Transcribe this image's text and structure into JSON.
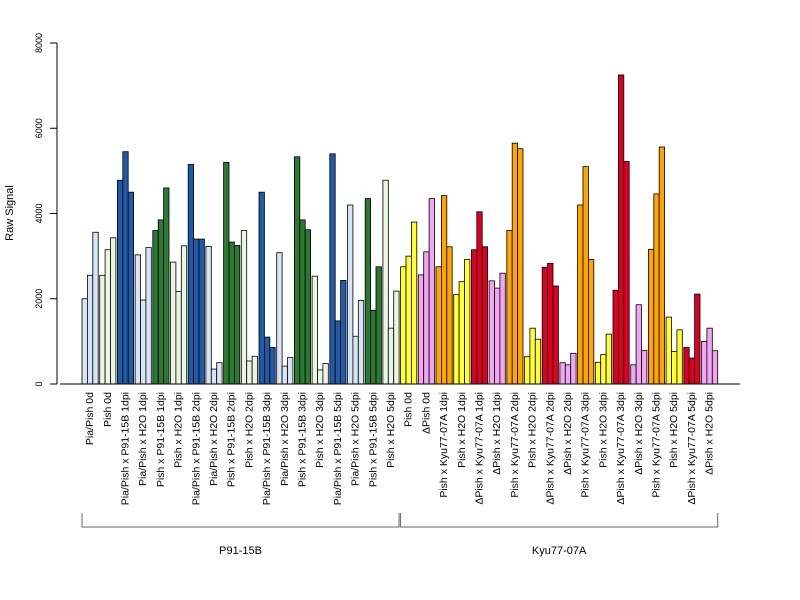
{
  "chart_data": {
    "type": "bar",
    "ylabel": "Raw Signal",
    "xlabel": "",
    "ylim": [
      0,
      8000
    ],
    "yticks": [
      0,
      2000,
      4000,
      6000,
      8000
    ],
    "grid": false,
    "legend": "none",
    "group_size": 3,
    "groups": [
      {
        "label": "Pia/Pish 0d",
        "color": "#d6e4f5",
        "values": [
          2000,
          2550,
          3560
        ]
      },
      {
        "label": "Pish 0d",
        "color": "#eaf5e2",
        "values": [
          2550,
          3150,
          3430
        ]
      },
      {
        "label": "Pia/Pish x P91-15B 1dpi",
        "color": "#1e5ba8",
        "values": [
          4780,
          5450,
          4500
        ]
      },
      {
        "label": "Pia/Pish x H2O 1dpi",
        "color": "#d6e4f5",
        "values": [
          3030,
          1970,
          3200
        ]
      },
      {
        "label": "Pish x P91-15B 1dpi",
        "color": "#2a7a34",
        "values": [
          3600,
          3850,
          4600
        ]
      },
      {
        "label": "Pish x H2O 1dpi",
        "color": "#eaf5e2",
        "values": [
          2860,
          2170,
          3240
        ]
      },
      {
        "label": "Pia/Pish x P91-15B 2dpi",
        "color": "#1e5ba8",
        "values": [
          5150,
          3400,
          3400
        ]
      },
      {
        "label": "Pia/Pish x H2O 2dpi",
        "color": "#d6e4f5",
        "values": [
          3230,
          350,
          500
        ]
      },
      {
        "label": "Pish x P91-15B 2dpi",
        "color": "#2a7a34",
        "values": [
          5200,
          3330,
          3250
        ]
      },
      {
        "label": "Pish x H2O 2dpi",
        "color": "#eaf5e2",
        "values": [
          3600,
          540,
          650
        ]
      },
      {
        "label": "Pia/Pish x P91-15B 3dpi",
        "color": "#1e5ba8",
        "values": [
          4500,
          1100,
          860
        ]
      },
      {
        "label": "Pia/Pish x H2O 3dpi",
        "color": "#d6e4f5",
        "values": [
          3080,
          420,
          620
        ]
      },
      {
        "label": "Pish x P91-15B 3dpi",
        "color": "#2a7a34",
        "values": [
          5330,
          3850,
          3620
        ]
      },
      {
        "label": "Pish x H2O 3dpi",
        "color": "#eaf5e2",
        "values": [
          2530,
          330,
          480
        ]
      },
      {
        "label": "Pia/Pish x P91-15B 5dpi",
        "color": "#1e5ba8",
        "values": [
          5400,
          1480,
          2430
        ]
      },
      {
        "label": "Pia/Pish x H2O 5dpi",
        "color": "#d6e4f5",
        "values": [
          4200,
          1120,
          1960
        ]
      },
      {
        "label": "Pish x P91-15B 5dpi",
        "color": "#2a7a34",
        "values": [
          4350,
          1730,
          2750
        ]
      },
      {
        "label": "Pish x H2O 5dpi",
        "color": "#eaf5e2",
        "values": [
          4780,
          1310,
          2180
        ]
      },
      {
        "label": "Pish 0d",
        "color": "#ffff33",
        "values": [
          2750,
          3000,
          3800
        ]
      },
      {
        "label": "ΔPish 0d",
        "color": "#f2a6f2",
        "values": [
          2560,
          3100,
          4350
        ]
      },
      {
        "label": "Pish x Kyu77-07A 1dpi",
        "color": "#ffa500",
        "values": [
          2750,
          4420,
          3220
        ]
      },
      {
        "label": "Pish x H2O 1dpi",
        "color": "#ffff33",
        "values": [
          2100,
          2400,
          2920
        ]
      },
      {
        "label": "ΔPish x Kyu77-07A 1dpi",
        "color": "#dd0022",
        "values": [
          3150,
          4040,
          3220
        ]
      },
      {
        "label": "ΔPish x H2O 1dpi",
        "color": "#f2a6f2",
        "values": [
          2420,
          2250,
          2600
        ]
      },
      {
        "label": "Pish x Kyu77-07A 2dpi",
        "color": "#ffa500",
        "values": [
          3600,
          5650,
          5520
        ]
      },
      {
        "label": "Pish x H2O 2dpi",
        "color": "#ffff33",
        "values": [
          640,
          1310,
          1050
        ]
      },
      {
        "label": "ΔPish x Kyu77-07A 2dpi",
        "color": "#dd0022",
        "values": [
          2740,
          2830,
          2300
        ]
      },
      {
        "label": "ΔPish x H2O 2dpi",
        "color": "#f2a6f2",
        "values": [
          500,
          450,
          720
        ]
      },
      {
        "label": "Pish x Kyu77-07A 3dpi",
        "color": "#ffa500",
        "values": [
          4200,
          5100,
          2920
        ]
      },
      {
        "label": "Pish x H2O 3dpi",
        "color": "#ffff33",
        "values": [
          510,
          690,
          1170
        ]
      },
      {
        "label": "ΔPish x Kyu77-07A 3dpi",
        "color": "#dd0022",
        "values": [
          2200,
          7250,
          5220
        ]
      },
      {
        "label": "ΔPish x H2O 3dpi",
        "color": "#f2a6f2",
        "values": [
          450,
          1860,
          790
        ]
      },
      {
        "label": "Pish x Kyu77-07A 5dpi",
        "color": "#ffa500",
        "values": [
          3160,
          4460,
          5560
        ]
      },
      {
        "label": "Pish x H2O 5dpi",
        "color": "#ffff33",
        "values": [
          1570,
          760,
          1270
        ]
      },
      {
        "label": "ΔPish x Kyu77-07A 5dpi",
        "color": "#dd0022",
        "values": [
          860,
          610,
          2110
        ]
      },
      {
        "label": "ΔPish x H2O 5dpi",
        "color": "#f2a6f2",
        "values": [
          1000,
          1310,
          780
        ]
      }
    ],
    "brackets": [
      {
        "label": "P91-15B",
        "first_group": 0,
        "last_group": 17
      },
      {
        "label": "Kyu77-07A",
        "first_group": 18,
        "last_group": 35
      }
    ]
  }
}
